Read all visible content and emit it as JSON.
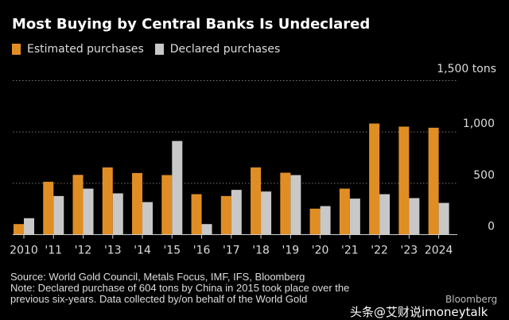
{
  "colors": {
    "estimated": "#e08e24",
    "declared": "#c8c8c8",
    "grid": "#777",
    "background": "#000000"
  },
  "footer": {
    "source": "Source: World Gold Council, Metals Focus, IMF, IFS, Bloomberg",
    "note1": "Note: Declared purchase of 604 tons by China in 2015 took place over the",
    "note2": "previous six-years. Data collected by/on behalf of the World Gold",
    "logo": "Bloomberg",
    "watermark": "头条@艾财说imoneytalk"
  },
  "chart_data": {
    "type": "bar",
    "title": "Most Buying by Central Banks Is Undeclared",
    "unit_label": "1,500 tons",
    "categories": [
      "2010",
      "'11",
      "'12",
      "'13",
      "'14",
      "'15",
      "'16",
      "'17",
      "'18",
      "'19",
      "'20",
      "'21",
      "'22",
      "'23",
      "2024"
    ],
    "series": [
      {
        "name": "Estimated purchases",
        "values": [
          103,
          515,
          582,
          655,
          600,
          580,
          394,
          376,
          655,
          603,
          253,
          448,
          1082,
          1052,
          1041
        ]
      },
      {
        "name": "Declared purchases",
        "values": [
          160,
          376,
          448,
          402,
          317,
          912,
          103,
          436,
          420,
          580,
          278,
          351,
          394,
          356,
          309
        ]
      }
    ],
    "ylim": [
      0,
      1500
    ],
    "yticks": [
      0,
      500,
      1000
    ],
    "ytick_labels": [
      "0",
      "500",
      "1,000"
    ],
    "grid": true,
    "legend_position": "top-left"
  }
}
